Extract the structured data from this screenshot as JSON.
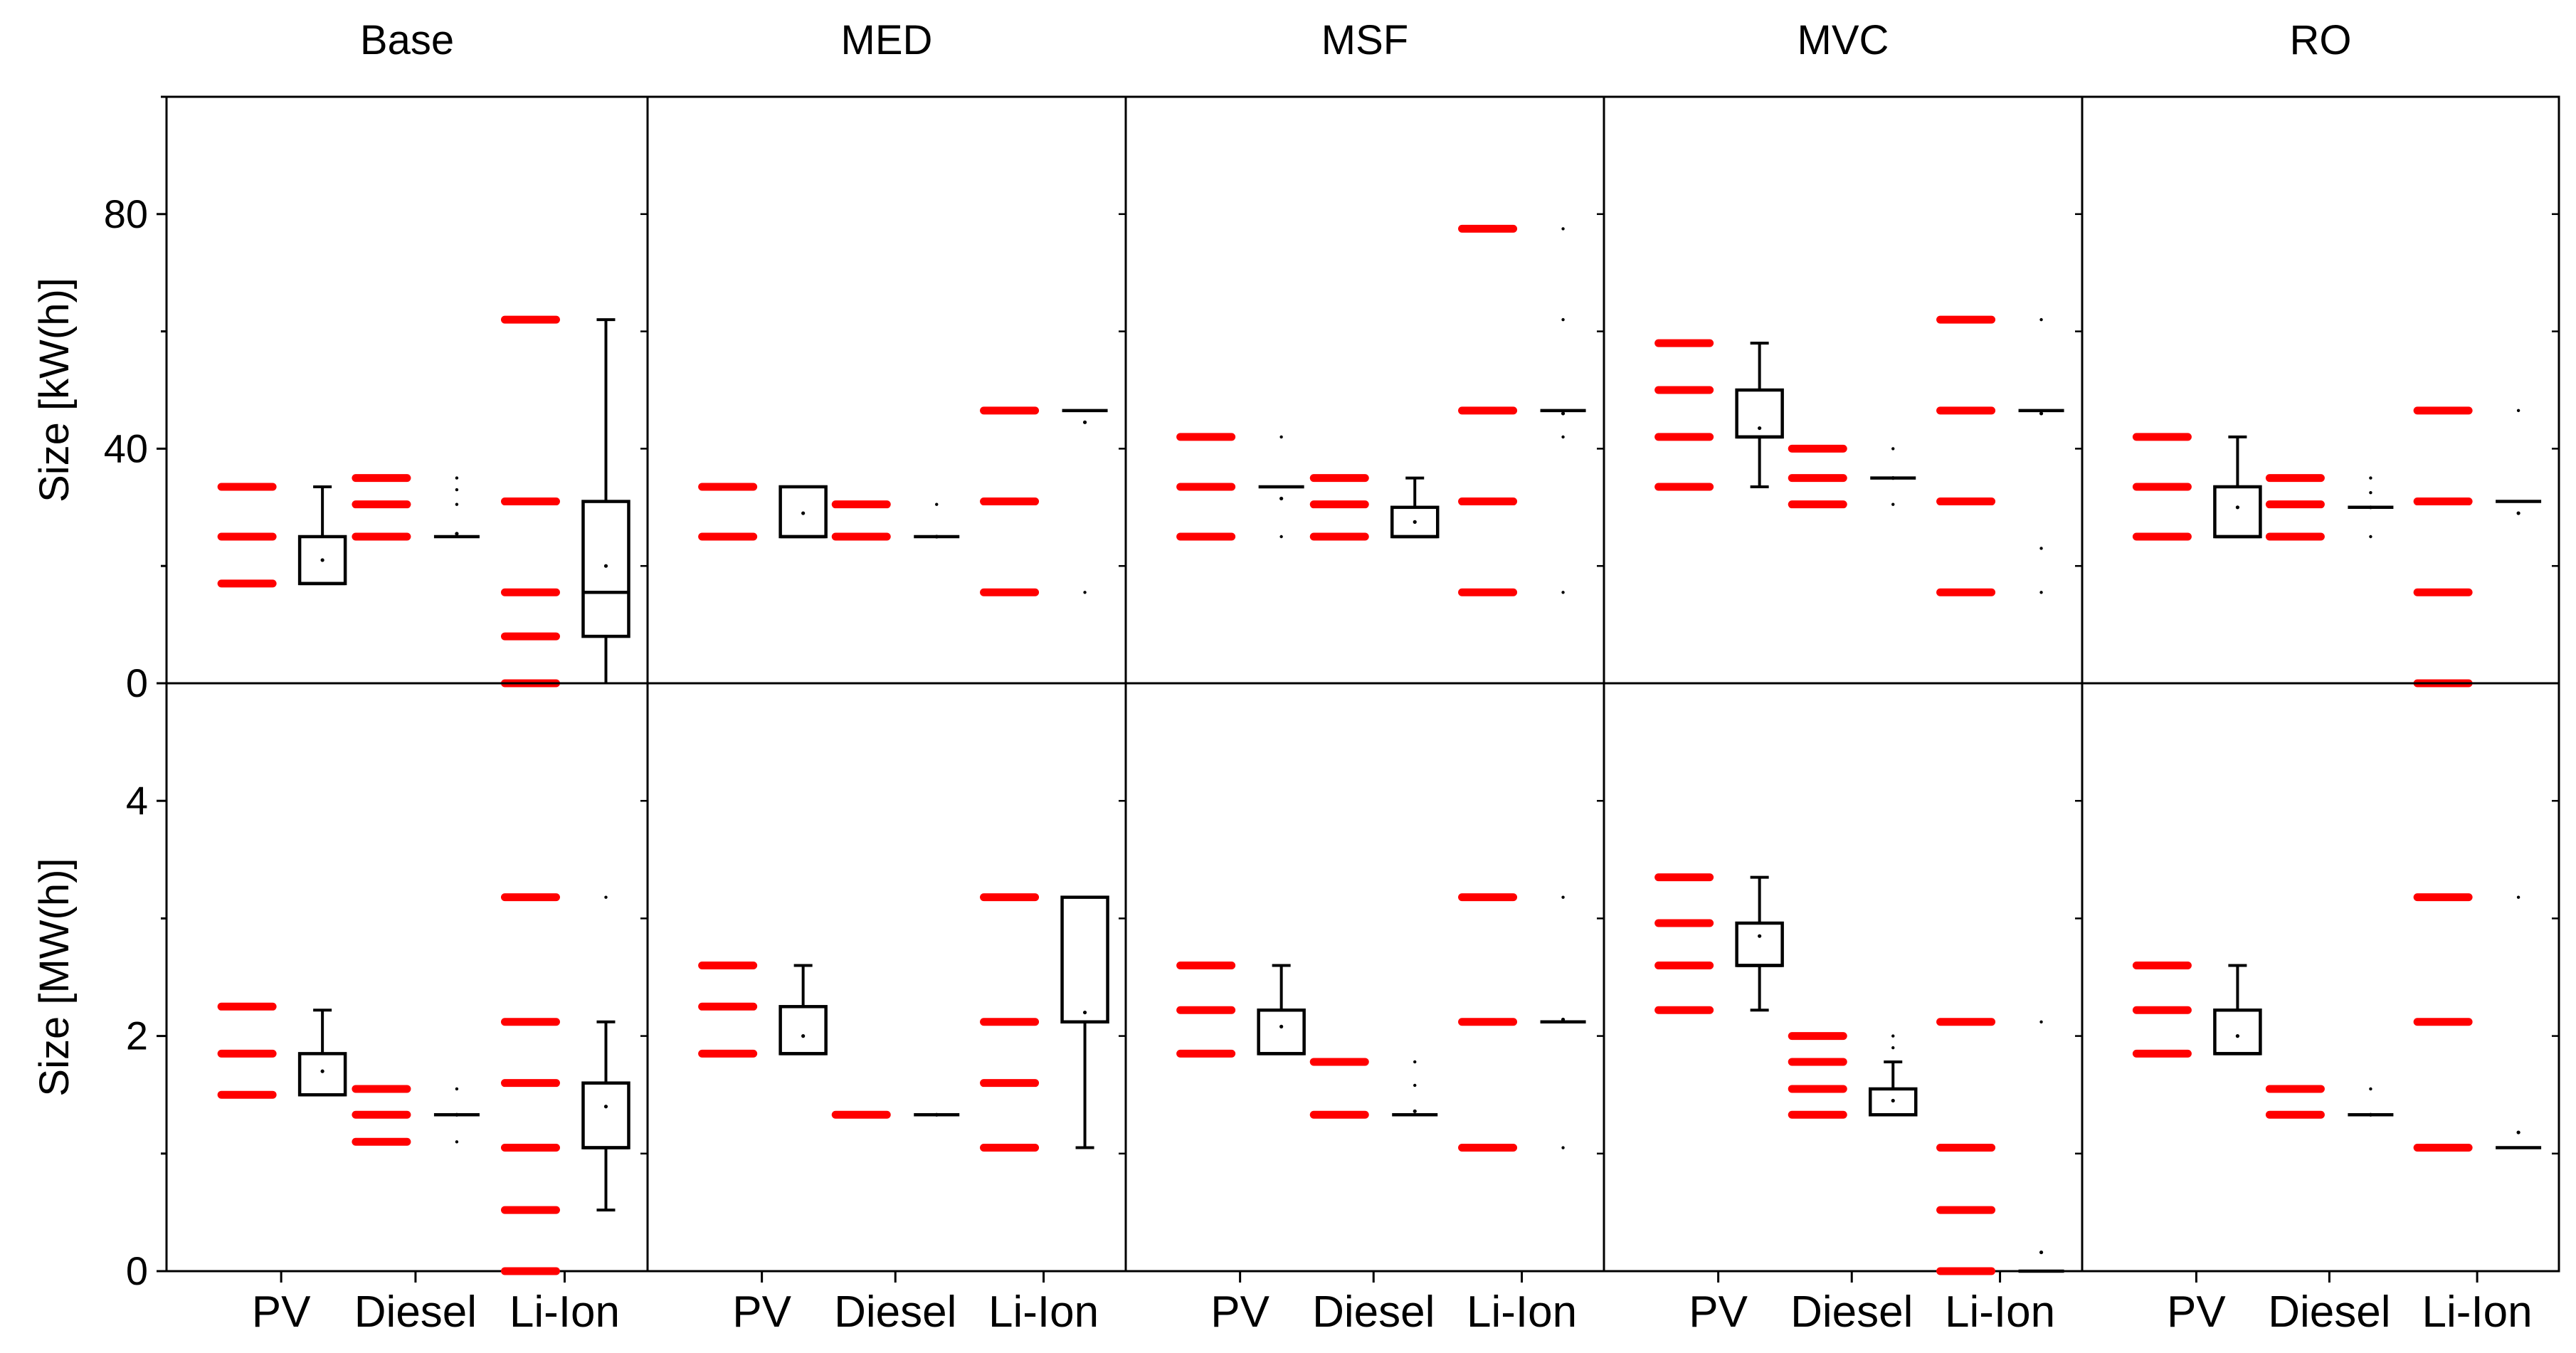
{
  "colors": {
    "points": "#ff0000",
    "box": "#000000",
    "background": "#ffffff"
  },
  "chart_data": {
    "type": "box",
    "columns": [
      "Base",
      "MED",
      "MSF",
      "MVC",
      "RO"
    ],
    "categories": [
      "PV",
      "Diesel",
      "Li-Ion"
    ],
    "rows": [
      {
        "ylabel": "Size [kW(h)]",
        "ylim": [
          0,
          100
        ],
        "yticks": [
          0,
          40,
          80
        ],
        "yminor": [
          20,
          60,
          100
        ],
        "panels": [
          [
            {
              "points": [
                17,
                25,
                33.5
              ],
              "box": {
                "q1": 17,
                "median": 17,
                "q3": 25,
                "mean": 21,
                "whisker_low": 17,
                "whisker_high": 33.5
              }
            },
            {
              "points": [
                25,
                30.5,
                35
              ],
              "box": {
                "q1": 25,
                "median": 25,
                "q3": 25,
                "mean": 25.5,
                "whisker_low": 25,
                "whisker_high": 25,
                "outliers": [
                  30.5,
                  33,
                  35
                ]
              }
            },
            {
              "points": [
                0,
                8,
                15.5,
                31,
                62
              ],
              "box": {
                "q1": 8,
                "median": 15.5,
                "q3": 31,
                "mean": 20,
                "whisker_low": 0,
                "whisker_high": 62
              }
            }
          ],
          [
            {
              "points": [
                25,
                33.5
              ],
              "box": {
                "q1": 25,
                "median": 25,
                "q3": 33.5,
                "mean": 29,
                "whisker_low": 25,
                "whisker_high": 33.5
              }
            },
            {
              "points": [
                25,
                30.5
              ],
              "box": {
                "q1": 25,
                "median": 25,
                "q3": 25,
                "mean": 25,
                "whisker_low": 25,
                "whisker_high": 25,
                "outliers": [
                  30.5
                ]
              }
            },
            {
              "points": [
                15.5,
                31,
                46.5
              ],
              "box": {
                "q1": 46.5,
                "median": 46.5,
                "q3": 46.5,
                "mean": 44.5,
                "whisker_low": 46.5,
                "whisker_high": 46.5,
                "outliers": [
                  15.5
                ]
              }
            }
          ],
          [
            {
              "points": [
                25,
                33.5,
                42
              ],
              "box": {
                "q1": 33.5,
                "median": 33.5,
                "q3": 33.5,
                "mean": 31.5,
                "whisker_low": 33.5,
                "whisker_high": 33.5,
                "outliers": [
                  25,
                  42
                ]
              }
            },
            {
              "points": [
                25,
                30.5,
                35
              ],
              "box": {
                "q1": 25,
                "median": 25,
                "q3": 30,
                "mean": 27.5,
                "whisker_low": 25,
                "whisker_high": 35
              }
            },
            {
              "points": [
                15.5,
                31,
                46.5,
                77.5
              ],
              "box": {
                "q1": 46.5,
                "median": 46.5,
                "q3": 46.5,
                "mean": 46,
                "whisker_low": 46.5,
                "whisker_high": 46.5,
                "outliers": [
                  15.5,
                  42,
                  62,
                  77.5
                ]
              }
            }
          ],
          [
            {
              "points": [
                33.5,
                42,
                50,
                58
              ],
              "box": {
                "q1": 42,
                "median": 42,
                "q3": 50,
                "mean": 43.5,
                "whisker_low": 33.5,
                "whisker_high": 58
              }
            },
            {
              "points": [
                30.5,
                35,
                40
              ],
              "box": {
                "q1": 35,
                "median": 35,
                "q3": 35,
                "mean": 35,
                "whisker_low": 35,
                "whisker_high": 35,
                "outliers": [
                  30.5,
                  40
                ]
              }
            },
            {
              "points": [
                15.5,
                31,
                46.5,
                62
              ],
              "box": {
                "q1": 46.5,
                "median": 46.5,
                "q3": 46.5,
                "mean": 46,
                "whisker_low": 46.5,
                "whisker_high": 46.5,
                "outliers": [
                  15.5,
                  23,
                  62
                ]
              }
            }
          ],
          [
            {
              "points": [
                25,
                33.5,
                42
              ],
              "box": {
                "q1": 25,
                "median": 25,
                "q3": 33.5,
                "mean": 30,
                "whisker_low": 25,
                "whisker_high": 42
              }
            },
            {
              "points": [
                25,
                30.5,
                35
              ],
              "box": {
                "q1": 30,
                "median": 30,
                "q3": 30,
                "mean": 30,
                "whisker_low": 30,
                "whisker_high": 30,
                "outliers": [
                  25,
                  32.5,
                  35
                ]
              }
            },
            {
              "points": [
                0,
                15.5,
                31,
                46.5
              ],
              "box": {
                "q1": 31,
                "median": 31,
                "q3": 31,
                "mean": 29,
                "whisker_low": 31,
                "whisker_high": 31,
                "outliers": [
                  46.5
                ]
              }
            }
          ]
        ]
      },
      {
        "ylabel": "Size [MW(h)]",
        "ylim": [
          0,
          5
        ],
        "yticks": [
          0,
          2,
          4
        ],
        "yminor": [
          1,
          3,
          5
        ],
        "panels": [
          [
            {
              "points": [
                1.5,
                1.85,
                2.25
              ],
              "box": {
                "q1": 1.5,
                "median": 1.5,
                "q3": 1.85,
                "mean": 1.7,
                "whisker_low": 1.5,
                "whisker_high": 2.22
              }
            },
            {
              "points": [
                1.1,
                1.33,
                1.55
              ],
              "box": {
                "q1": 1.33,
                "median": 1.33,
                "q3": 1.33,
                "mean": 1.33,
                "whisker_low": 1.33,
                "whisker_high": 1.33,
                "outliers": [
                  1.1,
                  1.55
                ]
              }
            },
            {
              "points": [
                0,
                0.52,
                1.05,
                1.6,
                2.12,
                3.18
              ],
              "box": {
                "q1": 1.05,
                "median": 1.05,
                "q3": 1.6,
                "mean": 1.4,
                "whisker_low": 0.52,
                "whisker_high": 2.12,
                "outliers": [
                  3.18
                ]
              }
            }
          ],
          [
            {
              "points": [
                1.85,
                2.25,
                2.6
              ],
              "box": {
                "q1": 1.85,
                "median": 1.85,
                "q3": 2.25,
                "mean": 2.0,
                "whisker_low": 1.85,
                "whisker_high": 2.6
              }
            },
            {
              "points": [
                1.33
              ],
              "box": {
                "q1": 1.33,
                "median": 1.33,
                "q3": 1.33,
                "mean": 1.33,
                "whisker_low": 1.33,
                "whisker_high": 1.33
              }
            },
            {
              "points": [
                1.05,
                1.6,
                2.12,
                3.18
              ],
              "box": {
                "q1": 2.12,
                "median": 2.12,
                "q3": 3.18,
                "mean": 2.2,
                "whisker_low": 1.05,
                "whisker_high": 3.18
              }
            }
          ],
          [
            {
              "points": [
                1.85,
                2.22,
                2.6
              ],
              "box": {
                "q1": 1.85,
                "median": 1.85,
                "q3": 2.22,
                "mean": 2.08,
                "whisker_low": 1.85,
                "whisker_high": 2.6
              }
            },
            {
              "points": [
                1.33,
                1.78
              ],
              "box": {
                "q1": 1.33,
                "median": 1.33,
                "q3": 1.33,
                "mean": 1.36,
                "whisker_low": 1.33,
                "whisker_high": 1.33,
                "outliers": [
                  1.58,
                  1.78
                ]
              }
            },
            {
              "points": [
                1.05,
                2.12,
                3.18
              ],
              "box": {
                "q1": 2.12,
                "median": 2.12,
                "q3": 2.12,
                "mean": 2.14,
                "whisker_low": 2.12,
                "whisker_high": 2.12,
                "outliers": [
                  1.05,
                  3.18
                ]
              }
            }
          ],
          [
            {
              "points": [
                2.22,
                2.6,
                2.96,
                3.35
              ],
              "box": {
                "q1": 2.6,
                "median": 2.6,
                "q3": 2.96,
                "mean": 2.85,
                "whisker_low": 2.22,
                "whisker_high": 3.35
              }
            },
            {
              "points": [
                1.33,
                1.55,
                1.78,
                2.0
              ],
              "box": {
                "q1": 1.33,
                "median": 1.33,
                "q3": 1.55,
                "mean": 1.45,
                "whisker_low": 1.33,
                "whisker_high": 1.78,
                "outliers": [
                  1.9,
                  2.0
                ]
              }
            },
            {
              "points": [
                0,
                0.52,
                1.05,
                2.12
              ],
              "box": {
                "q1": 0,
                "median": 0,
                "q3": 0,
                "mean": 0.16,
                "whisker_low": 0,
                "whisker_high": 0,
                "outliers": [
                  2.12
                ]
              }
            }
          ],
          [
            {
              "points": [
                1.85,
                2.22,
                2.6
              ],
              "box": {
                "q1": 1.85,
                "median": 1.85,
                "q3": 2.22,
                "mean": 2.0,
                "whisker_low": 1.85,
                "whisker_high": 2.6
              }
            },
            {
              "points": [
                1.33,
                1.55
              ],
              "box": {
                "q1": 1.33,
                "median": 1.33,
                "q3": 1.33,
                "mean": 1.33,
                "whisker_low": 1.33,
                "whisker_high": 1.33,
                "outliers": [
                  1.55
                ]
              }
            },
            {
              "points": [
                1.05,
                2.12,
                3.18
              ],
              "box": {
                "q1": 1.05,
                "median": 1.05,
                "q3": 1.05,
                "mean": 1.18,
                "whisker_low": 1.05,
                "whisker_high": 1.05,
                "outliers": [
                  3.18
                ]
              }
            }
          ]
        ]
      }
    ]
  }
}
